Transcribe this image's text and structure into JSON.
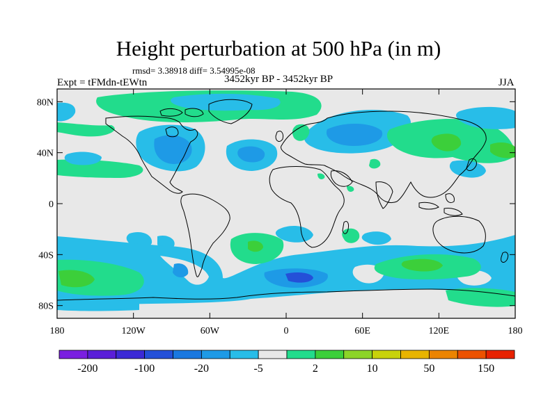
{
  "title": "Height perturbation at 500 hPa (in m)",
  "stats": "rmsd= 3.38918 diff= 3.54995e-08",
  "experiment": "Expt = tFMdn-tEWtn",
  "period": "3452kyr BP - 3452kyr BP",
  "season": "JJA",
  "axes": {
    "lat_labels": [
      "80N",
      "40N",
      "0",
      "40S",
      "80S"
    ],
    "lat_values": [
      80,
      40,
      0,
      -40,
      -80
    ],
    "lon_labels": [
      "180",
      "120W",
      "60W",
      "0",
      "60E",
      "120E",
      "180"
    ],
    "lon_values": [
      -180,
      -120,
      -60,
      0,
      60,
      120,
      180
    ],
    "lat_range": [
      -90,
      90
    ],
    "lon_range": [
      -180,
      180
    ]
  },
  "colorbar": {
    "colors": [
      "#7a1fe0",
      "#5a1ed8",
      "#3c2ad6",
      "#2450d8",
      "#1a78e0",
      "#1e9ae6",
      "#28bde8",
      "#e8e8e8",
      "#22dc8c",
      "#3ccf3a",
      "#8cd428",
      "#c8d20c",
      "#e8b400",
      "#ec8400",
      "#ec5200",
      "#e82200"
    ],
    "labels": [
      "-200",
      "-100",
      "-20",
      "-5",
      "2",
      "10",
      "50",
      "150"
    ],
    "label_box_index": [
      1,
      3,
      5,
      7,
      9,
      11,
      13,
      15
    ]
  },
  "map": {
    "background_color": "#e8e8e8",
    "coast_color": "#000000"
  }
}
